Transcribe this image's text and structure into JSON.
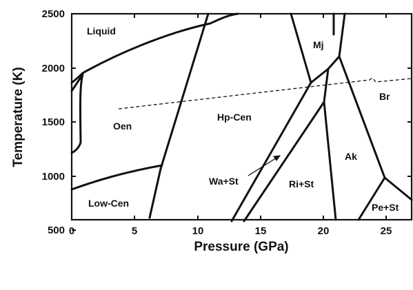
{
  "diagram": {
    "x_axis": {
      "label": "Pressure (GPa)",
      "ticks": [
        "0",
        "5",
        "10",
        "15",
        "20",
        "25"
      ],
      "range": [
        0,
        27
      ]
    },
    "y_axis": {
      "label": "Temperature (K)",
      "ticks": [
        "500",
        "1000",
        "1500",
        "2000",
        "2500"
      ],
      "range": [
        350,
        2500
      ]
    },
    "regions": [
      {
        "id": "liquid",
        "text": "Liquid"
      },
      {
        "id": "oen",
        "text": "Oen"
      },
      {
        "id": "hp-cen",
        "text": "Hp-Cen"
      },
      {
        "id": "low-cen",
        "text": "Low-Cen"
      },
      {
        "id": "mj",
        "text": "Mj"
      },
      {
        "id": "br",
        "text": "Br"
      },
      {
        "id": "ak",
        "text": "Ak"
      },
      {
        "id": "wa-st",
        "text": "Wa+St"
      },
      {
        "id": "ri-st",
        "text": "Ri+St"
      },
      {
        "id": "pe-st",
        "text": "Pe+St"
      }
    ]
  }
}
